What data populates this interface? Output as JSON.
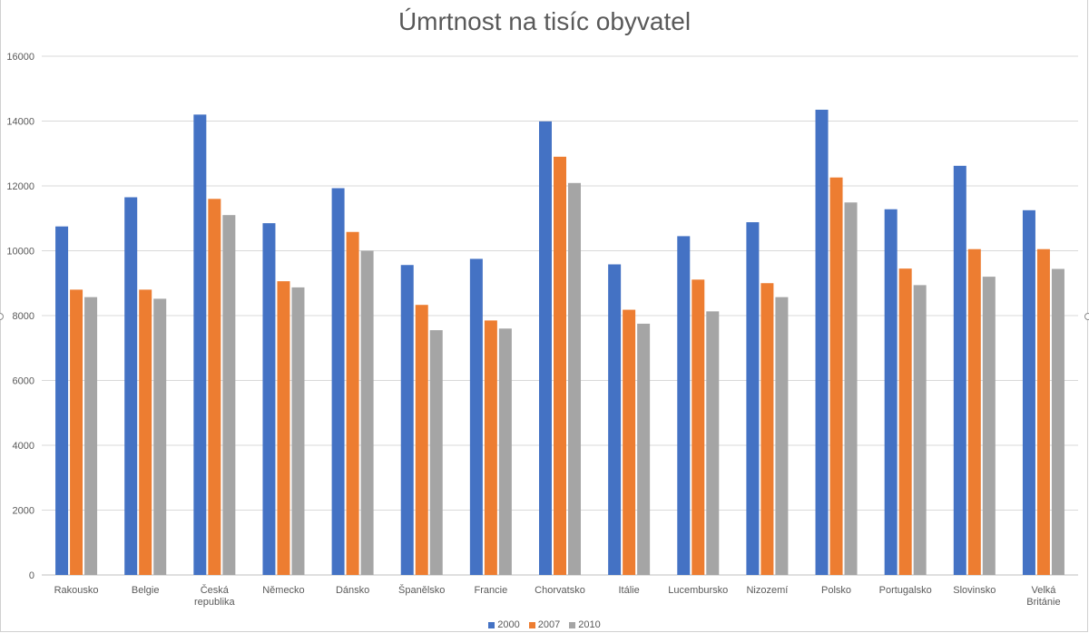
{
  "chart_data": {
    "type": "bar",
    "title": "Úmrtnost na tisíc obyvatel",
    "xlabel": "",
    "ylabel": "",
    "ylim": [
      0,
      16000
    ],
    "yticks": [
      0,
      2000,
      4000,
      6000,
      8000,
      10000,
      12000,
      14000,
      16000
    ],
    "grid": true,
    "legend_position": "bottom",
    "categories": [
      "Rakousko",
      "Belgie",
      "Česká republika",
      "Německo",
      "Dánsko",
      "Španělsko",
      "Francie",
      "Chorvatsko",
      "Itálie",
      "Lucembursko",
      "Nizozemí",
      "Polsko",
      "Portugalsko",
      "Slovinsko",
      "Velká Británie"
    ],
    "series": [
      {
        "name": "2000",
        "color": "#4472C4",
        "values": [
          10750,
          11650,
          14200,
          10850,
          11930,
          9560,
          9750,
          13990,
          9580,
          10450,
          10880,
          14350,
          11280,
          12620,
          11250
        ]
      },
      {
        "name": "2007",
        "color": "#ED7D31",
        "values": [
          8800,
          8800,
          11600,
          9060,
          10580,
          8330,
          7850,
          12900,
          8180,
          9110,
          9000,
          12260,
          9450,
          10050,
          10050
        ]
      },
      {
        "name": "2010",
        "color": "#A5A5A5",
        "values": [
          8570,
          8520,
          11100,
          8870,
          10000,
          7550,
          7600,
          12090,
          7750,
          8130,
          8570,
          11490,
          8940,
          9200,
          9440
        ]
      }
    ]
  }
}
